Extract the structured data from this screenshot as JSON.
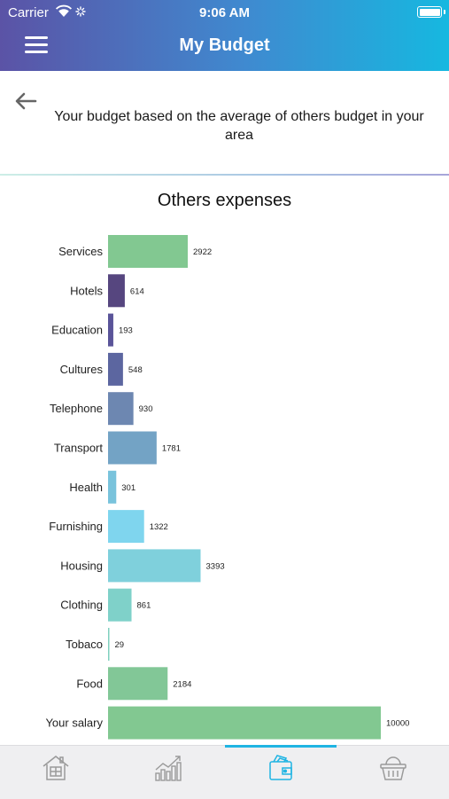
{
  "status": {
    "carrier": "Carrier",
    "time": "9:06 AM"
  },
  "header": {
    "title": "My Budget",
    "menu_icon": "hamburger-menu-icon"
  },
  "subheader": {
    "back_icon": "back-arrow-icon",
    "text": "Your budget based on the average of others budget in your area"
  },
  "chart_data": {
    "type": "bar",
    "orientation": "horizontal",
    "title": "Others expenses",
    "categories": [
      "Services",
      "Hotels",
      "Education",
      "Cultures",
      "Telephone",
      "Transport",
      "Health",
      "Furnishing",
      "Housing",
      "Clothing",
      "Tobaco",
      "Food",
      "Your salary"
    ],
    "values": [
      2922,
      614,
      193,
      548,
      930,
      1781,
      301,
      1322,
      3393,
      861,
      29,
      2184,
      10000
    ],
    "colors": [
      "#82c891",
      "#56467f",
      "#5a5499",
      "#5c66a0",
      "#6d87b1",
      "#73a3c5",
      "#79c3dc",
      "#7fd5ee",
      "#7fd0dc",
      "#7fd1c9",
      "#7fd0bf",
      "#82c797",
      "#82c891"
    ],
    "xlabel": "",
    "ylabel": "",
    "grid": false,
    "legend": "none"
  },
  "tabs": [
    {
      "name": "home",
      "icon": "home-icon",
      "active": false
    },
    {
      "name": "stats",
      "icon": "bar-chart-icon",
      "active": false
    },
    {
      "name": "wallet",
      "icon": "wallet-icon",
      "active": true
    },
    {
      "name": "basket",
      "icon": "basket-icon",
      "active": false
    }
  ],
  "colors": {
    "active_tab": "#1fb4e3",
    "inactive_tab": "#9a9a9a"
  }
}
